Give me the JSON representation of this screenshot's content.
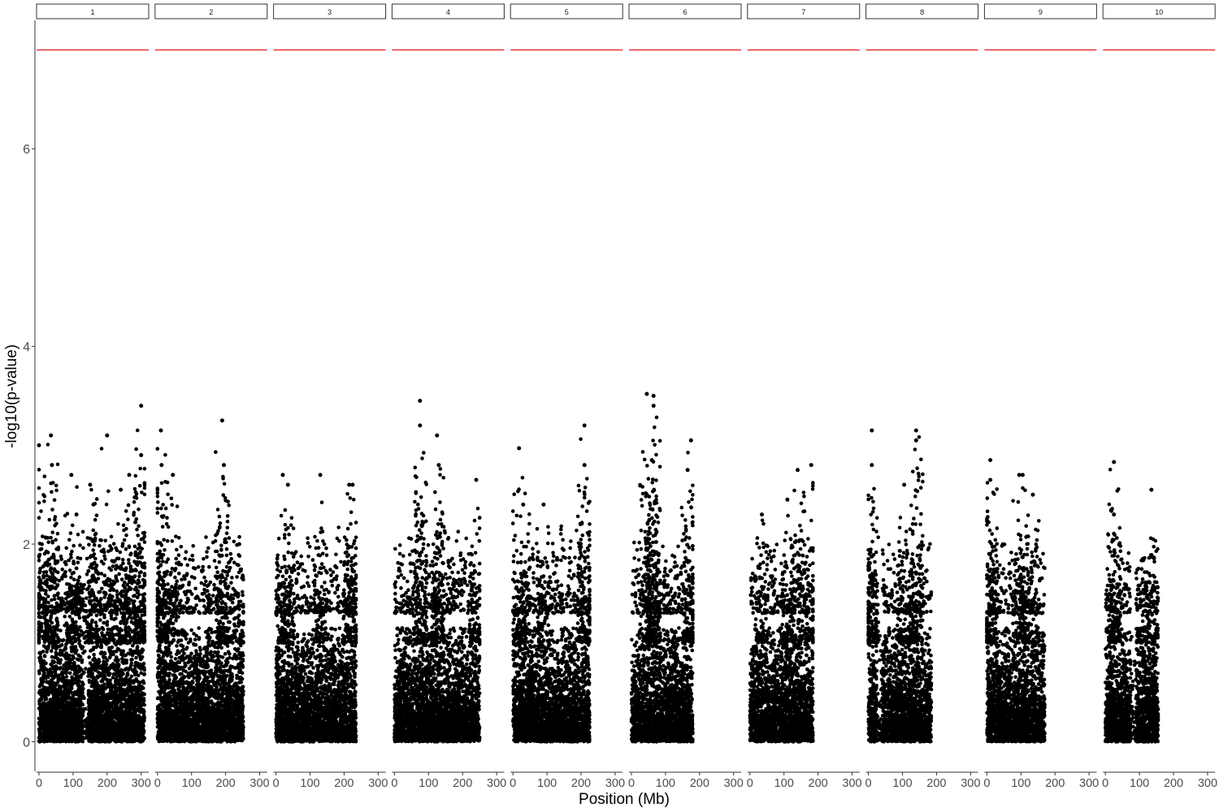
{
  "chart_data": {
    "type": "scatter",
    "subtype": "manhattan-faceted",
    "title": "",
    "xlabel": "Position (Mb)",
    "ylabel": "-log10(p-value)",
    "xlim": [
      0,
      315
    ],
    "ylim": [
      -0.3,
      7.3
    ],
    "x_ticks": [
      0,
      100,
      200,
      300
    ],
    "y_ticks": [
      0,
      2,
      4,
      6
    ],
    "threshold": {
      "value": 7.0,
      "color": "#e41a1c"
    },
    "point_color": "#000000",
    "grid": false,
    "legend": "none",
    "facets": [
      {
        "label": "1",
        "length": 310,
        "gaps": [
          [
            130,
            145
          ]
        ],
        "peaks": [
          [
            0,
            3.0
          ],
          [
            35,
            3.1
          ],
          [
            38,
            2.8
          ],
          [
            95,
            2.7
          ],
          [
            110,
            2.3
          ],
          [
            150,
            2.6
          ],
          [
            160,
            2.4
          ],
          [
            200,
            3.1
          ],
          [
            240,
            2.55
          ],
          [
            265,
            2.7
          ],
          [
            300,
            3.4
          ],
          [
            300,
            2.9
          ]
        ]
      },
      {
        "label": "2",
        "length": 252,
        "gaps": [],
        "peaks": [
          [
            10,
            3.15
          ],
          [
            12,
            2.8
          ],
          [
            45,
            2.7
          ],
          [
            190,
            3.25
          ],
          [
            195,
            2.8
          ],
          [
            240,
            2.0
          ]
        ]
      },
      {
        "label": "3",
        "length": 235,
        "gaps": [],
        "peaks": [
          [
            20,
            2.7
          ],
          [
            35,
            2.6
          ],
          [
            130,
            2.7
          ],
          [
            215,
            2.6
          ],
          [
            225,
            2.6
          ]
        ]
      },
      {
        "label": "4",
        "length": 250,
        "gaps": [],
        "peaks": [
          [
            75,
            3.45
          ],
          [
            75,
            3.2
          ],
          [
            125,
            3.1
          ],
          [
            130,
            2.8
          ],
          [
            240,
            2.65
          ]
        ]
      },
      {
        "label": "5",
        "length": 225,
        "gaps": [],
        "peaks": [
          [
            18,
            2.97
          ],
          [
            30,
            2.4
          ],
          [
            90,
            2.4
          ],
          [
            210,
            3.2
          ],
          [
            210,
            2.8
          ]
        ]
      },
      {
        "label": "6",
        "length": 180,
        "gaps": [],
        "peaks": [
          [
            45,
            3.52
          ],
          [
            65,
            3.5
          ],
          [
            65,
            3.4
          ],
          [
            60,
            2.85
          ],
          [
            175,
            3.05
          ],
          [
            165,
            2.75
          ]
        ]
      },
      {
        "label": "7",
        "length": 185,
        "gaps": [],
        "peaks": [
          [
            35,
            2.3
          ],
          [
            140,
            2.75
          ],
          [
            180,
            2.8
          ],
          [
            110,
            2.45
          ]
        ]
      },
      {
        "label": "8",
        "length": 185,
        "gaps": [
          [
            25,
            40
          ]
        ],
        "peaks": [
          [
            10,
            3.15
          ],
          [
            10,
            2.8
          ],
          [
            140,
            3.15
          ],
          [
            140,
            3.05
          ],
          [
            105,
            2.6
          ]
        ]
      },
      {
        "label": "9",
        "length": 170,
        "gaps": [],
        "peaks": [
          [
            10,
            2.85
          ],
          [
            10,
            2.65
          ],
          [
            95,
            2.7
          ],
          [
            105,
            2.7
          ],
          [
            135,
            2.5
          ]
        ]
      },
      {
        "label": "10",
        "length": 155,
        "gaps": [
          [
            75,
            90
          ]
        ],
        "peaks": [
          [
            25,
            2.83
          ],
          [
            25,
            2.3
          ],
          [
            135,
            2.55
          ],
          [
            110,
            1.85
          ]
        ]
      }
    ]
  }
}
